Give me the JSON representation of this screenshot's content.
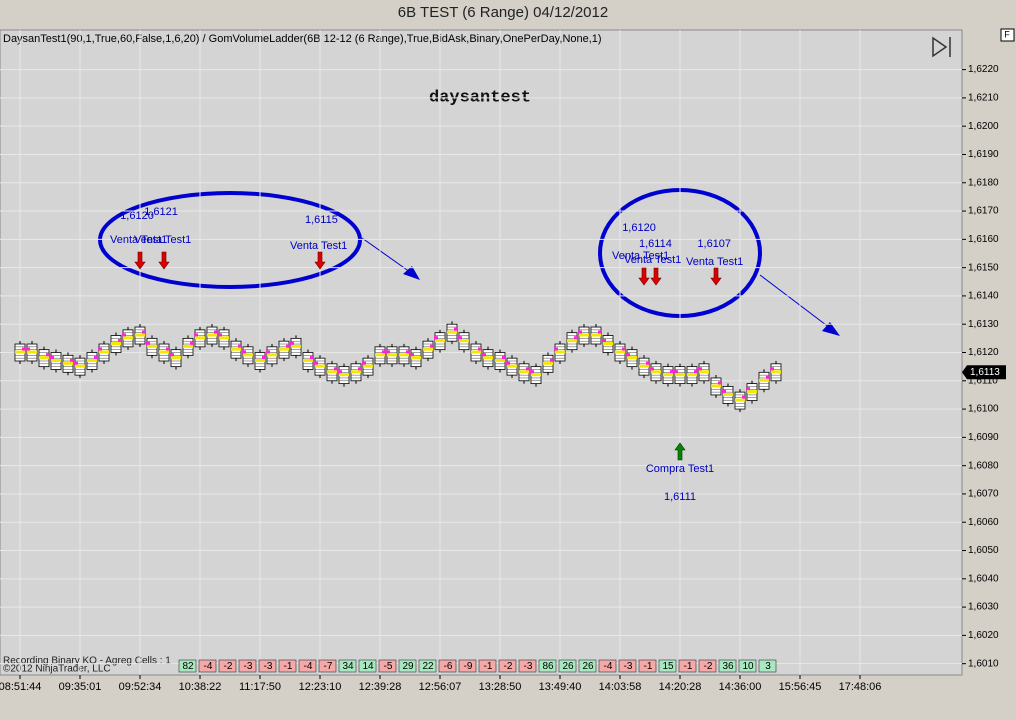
{
  "chart_data": {
    "type": "range_bar",
    "title": "6B TEST (6 Range)  04/12/2012",
    "indicator_line": "DaysanTest1(90,1,True,60,False,1,6,20) / GomVolumeLadder(6B 12-12 (6 Range),True,BidAsk,Binary,OnePerDay,None,1)",
    "watermark": "daysantest",
    "status_text": "Recording Binary KO - Agreg Cells : 1",
    "copyright": "©2012 NinjaTrader, LLC",
    "corner_button": "F",
    "last_price": {
      "value": 1.6113,
      "label": "1,6113"
    },
    "ylim": [
      1.6006,
      1.6234
    ],
    "yticks": [
      {
        "value": 1.601,
        "label": "1,6010"
      },
      {
        "value": 1.602,
        "label": "1,6020"
      },
      {
        "value": 1.603,
        "label": "1,6030"
      },
      {
        "value": 1.604,
        "label": "1,6040"
      },
      {
        "value": 1.605,
        "label": "1,6050"
      },
      {
        "value": 1.606,
        "label": "1,6060"
      },
      {
        "value": 1.607,
        "label": "1,6070"
      },
      {
        "value": 1.608,
        "label": "1,6080"
      },
      {
        "value": 1.609,
        "label": "1,6090"
      },
      {
        "value": 1.61,
        "label": "1,6100"
      },
      {
        "value": 1.611,
        "label": "1,6110"
      },
      {
        "value": 1.612,
        "label": "1,6120"
      },
      {
        "value": 1.613,
        "label": "1,6130"
      },
      {
        "value": 1.614,
        "label": "1,6140"
      },
      {
        "value": 1.615,
        "label": "1,6150"
      },
      {
        "value": 1.616,
        "label": "1,6160"
      },
      {
        "value": 1.617,
        "label": "1,6170"
      },
      {
        "value": 1.618,
        "label": "1,6180"
      },
      {
        "value": 1.619,
        "label": "1,6190"
      },
      {
        "value": 1.62,
        "label": "1,6200"
      },
      {
        "value": 1.621,
        "label": "1,6210"
      },
      {
        "value": 1.622,
        "label": "1,6220"
      }
    ],
    "xlim": [
      -1.5,
      78.5
    ],
    "xticks": [
      {
        "value": 0,
        "label": "08:51:44"
      },
      {
        "value": 5,
        "label": "09:35:01"
      },
      {
        "value": 10,
        "label": "09:52:34"
      },
      {
        "value": 15,
        "label": "10:38:22"
      },
      {
        "value": 20,
        "label": "11:17:50"
      },
      {
        "value": 25,
        "label": "12:23:10"
      },
      {
        "value": 30,
        "label": "12:39:28"
      },
      {
        "value": 35,
        "label": "12:56:07"
      },
      {
        "value": 40,
        "label": "13:28:50"
      },
      {
        "value": 45,
        "label": "13:49:40"
      },
      {
        "value": 50,
        "label": "14:03:58"
      },
      {
        "value": 55,
        "label": "14:20:28"
      },
      {
        "value": 60,
        "label": "14:36:00"
      },
      {
        "value": 65,
        "label": "15:56:45"
      },
      {
        "value": 70,
        "label": "17:48:06"
      }
    ],
    "grid": true,
    "bar_mid": [
      1.612,
      1.612,
      1.6118,
      1.6117,
      1.6116,
      1.6115,
      1.6117,
      1.612,
      1.6123,
      1.6125,
      1.6126,
      1.6122,
      1.612,
      1.6118,
      1.6122,
      1.6125,
      1.6126,
      1.6125,
      1.6121,
      1.6119,
      1.6117,
      1.6119,
      1.6121,
      1.6122,
      1.6117,
      1.6115,
      1.6113,
      1.6112,
      1.6113,
      1.6115,
      1.6119,
      1.6119,
      1.6119,
      1.6118,
      1.6121,
      1.6124,
      1.6127,
      1.6124,
      1.612,
      1.6118,
      1.6117,
      1.6115,
      1.6113,
      1.6112,
      1.6116,
      1.612,
      1.6124,
      1.6126,
      1.6126,
      1.6123,
      1.612,
      1.6118,
      1.6115,
      1.6113,
      1.6112,
      1.6112,
      1.6112,
      1.6113,
      1.6108,
      1.6105,
      1.6103,
      1.6106,
      1.611,
      1.6113
    ],
    "signals": [
      {
        "side": "sell",
        "bar": 10,
        "text": "Venta Test1",
        "price": "1,6120"
      },
      {
        "side": "sell",
        "bar": 12,
        "text": "Venta Test1",
        "price": "1,6121"
      },
      {
        "side": "sell",
        "bar": 25,
        "text": "Venta Test1",
        "price": "1,6115"
      },
      {
        "side": "sell",
        "bar": 52,
        "text": "Venta Test1",
        "price": "1,6120"
      },
      {
        "side": "sell",
        "bar": 53,
        "text": "Venta Test1",
        "price": "1,6114"
      },
      {
        "side": "sell",
        "bar": 58,
        "text": "Venta Test1",
        "price": "1,6107"
      },
      {
        "side": "buy",
        "bar": 55,
        "text": "Compra Test1",
        "price": "1,6111"
      }
    ],
    "delta_start_bar": 14,
    "delta": [
      82,
      -4,
      -2,
      -3,
      -3,
      -1,
      -4,
      -7,
      34,
      14,
      -5,
      29,
      22,
      -6,
      -9,
      -1,
      -2,
      -3,
      86,
      26,
      26,
      -4,
      -3,
      -1,
      15,
      -1,
      -2,
      36,
      10,
      3
    ]
  }
}
